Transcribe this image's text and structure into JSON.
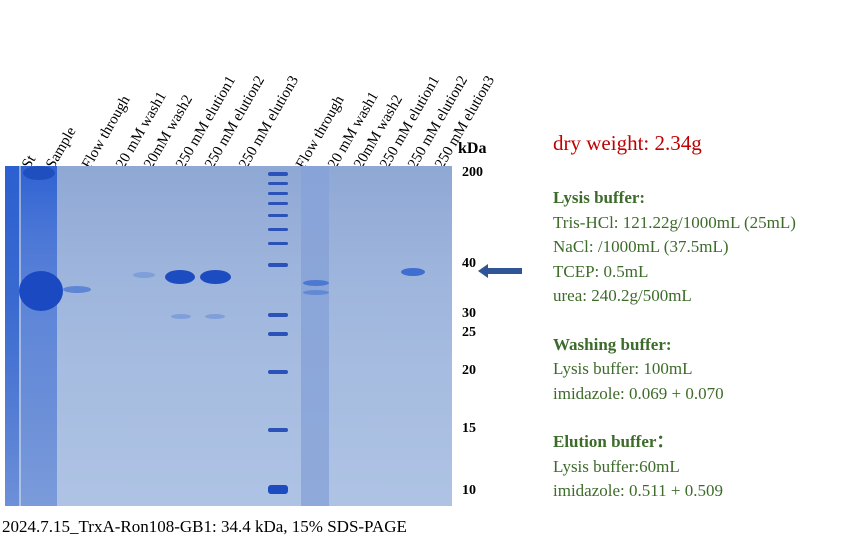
{
  "lanes": [
    "St",
    "Sample",
    "Flow through",
    "20 mM wash1",
    "20mM wash2",
    "250 mM elution1",
    "250 mM elution2",
    "250 mM elution3",
    "Flow through",
    "20 mM wash1",
    "20mM wash2",
    "250 mM elution1",
    "250 mM elution2",
    "250 mM elution3"
  ],
  "kda_label": "kDa",
  "markers": [
    "200",
    "40",
    "30",
    "25",
    "20",
    "15",
    "10"
  ],
  "dry_weight": "dry weight: 2.34g",
  "lysis": {
    "title": "Lysis buffer:",
    "lines": [
      "Tris-HCl: 121.22g/1000mL (25mL)",
      "NaCl: /1000mL (37.5mL)",
      "TCEP: 0.5mL",
      "urea: 240.2g/500mL"
    ]
  },
  "washing": {
    "title": "Washing buffer:",
    "lines": [
      "Lysis buffer: 100mL",
      "imidazole: 0.069 + 0.070"
    ]
  },
  "elution": {
    "title": "Elution buffer：",
    "lines": [
      "Lysis buffer:60mL",
      "imidazole: 0.511 + 0.509"
    ]
  },
  "caption": "2024.7.15_TrxA-Ron108-GB1: 34.4 kDa, 15% SDS-PAGE",
  "colors": {
    "gel_band": "#1f4fbf",
    "arrow": "#2f5597",
    "dry_weight": "#c00000",
    "notes": "#3d6b2a"
  }
}
